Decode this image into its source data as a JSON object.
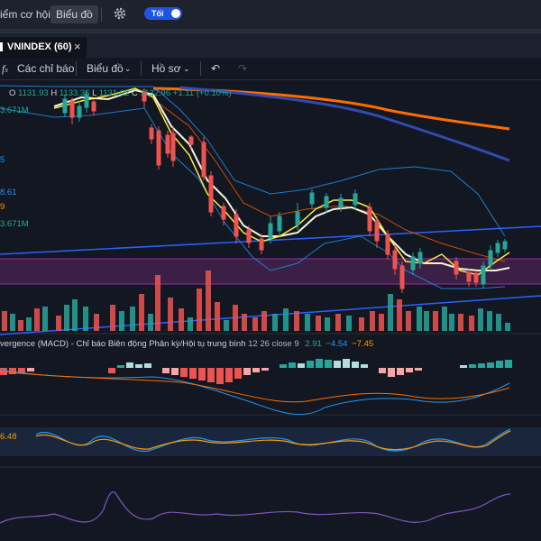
{
  "colors": {
    "bg": "#131722",
    "up": "#26a69a",
    "down": "#ef5350",
    "accent": "#2962ff",
    "toggle": "#1e53e5"
  },
  "topbar": {
    "nav1": "iểm cơ hội",
    "nav2": "Biểu đồ",
    "settings_icon": "gear-icon",
    "theme_toggle": "Tối"
  },
  "tab": {
    "icon": "chart-tab-icon",
    "title": "VNINDEX (60)",
    "close": "×"
  },
  "toolbar": {
    "indicators": "Các chỉ báo",
    "indicators_icon": "fx-icon",
    "chart_type": "Biểu đồ",
    "profile": "Hồ sơ",
    "undo_icon": "undo-icon",
    "redo_icon": "redo-icon"
  },
  "price_legend": {
    "o": "O",
    "o_val": "1131.93",
    "h": "H",
    "h_val": "1133.36",
    "l": "L",
    "l_val": "1131.02",
    "c": "C",
    "c_val": "1132.96",
    "change": "+1.11 (+0.10%)"
  },
  "left_labels": {
    "vol1": "3.671M",
    "v2": "5",
    "v3": "8.61",
    "v4": "9",
    "vol2": "3.671M"
  },
  "macd": {
    "label": "vergence (MACD) - Chỉ báo Biên động Phân kỳ/Hội tụ trung bình",
    "params": "12 26 close 9",
    "v1": "2.91",
    "v2": "−4.54",
    "v3": "−7.45"
  },
  "stoch": {
    "value": "6.48"
  }
}
